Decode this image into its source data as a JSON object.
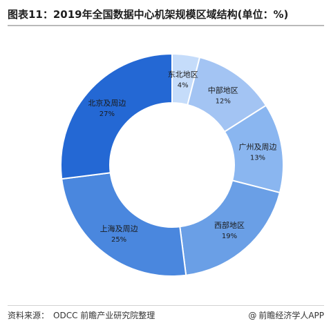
{
  "title": "图表11：2019年全国数据中心机架规模区域结构(单位：%)",
  "footer": {
    "source_label": "资料来源：",
    "source_text": "ODCC 前瞻产业研究院整理",
    "brand": "前瞻经济学人APP",
    "brand_icon": "at-sign-icon"
  },
  "colors": {
    "slices": [
      "#c5dcfa",
      "#a3c4f3",
      "#8ab6f0",
      "#6a9fe6",
      "#4a87de",
      "#2468d4"
    ],
    "label_text": "#1a1a1a"
  },
  "chart_data": {
    "type": "pie",
    "donut": true,
    "categories": [
      "东北地区",
      "中部地区",
      "广州及周边",
      "西部地区",
      "上海及周边",
      "北京及周边"
    ],
    "values": [
      4,
      12,
      13,
      19,
      25,
      27
    ],
    "value_labels": [
      "4%",
      "12%",
      "13%",
      "19%",
      "25%",
      "27%"
    ],
    "title": "图表11：2019年全国数据中心机架规模区域结构(单位：%)",
    "unit": "%"
  }
}
